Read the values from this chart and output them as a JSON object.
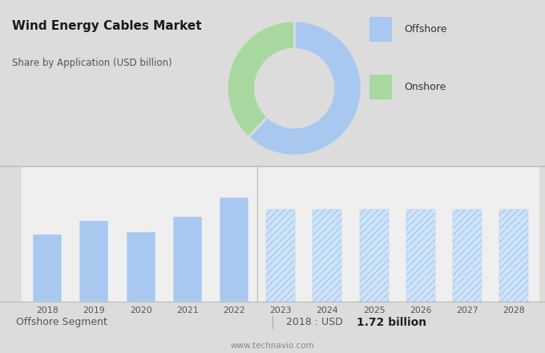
{
  "title": "Wind Energy Cables Market",
  "subtitle": "Share by Application (USD billion)",
  "bg_top": "#dcdcdc",
  "bg_bottom": "#efefef",
  "donut_offshore_pct": 62,
  "donut_onshore_pct": 38,
  "donut_color_offshore": "#a8c8f0",
  "donut_color_onshore": "#a8d8a0",
  "legend_offshore": "Offshore",
  "legend_onshore": "Onshore",
  "bar_years_solid": [
    2018,
    2019,
    2020,
    2021,
    2022
  ],
  "bar_values_solid": [
    1.72,
    2.05,
    1.78,
    2.15,
    2.65
  ],
  "bar_years_hatch": [
    2023,
    2024,
    2025,
    2026,
    2027,
    2028
  ],
  "bar_values_hatch": [
    2.35,
    2.35,
    2.35,
    2.35,
    2.35,
    2.35
  ],
  "bar_color_solid": "#a8c8f0",
  "bar_color_hatch_face": "#d0e4f8",
  "bar_color_hatch_edge": "#a8c8f0",
  "hatch_pattern": "////",
  "footer_left": "Offshore Segment",
  "footer_pipe": "|",
  "footer_value_label": "2018 : USD ",
  "footer_value_bold": "1.72 billion",
  "footer_url": "www.technavio.com",
  "grid_color": "#cccccc",
  "axis_line_color": "#bbbbbb",
  "separator_line_color": "#bbbbbb"
}
